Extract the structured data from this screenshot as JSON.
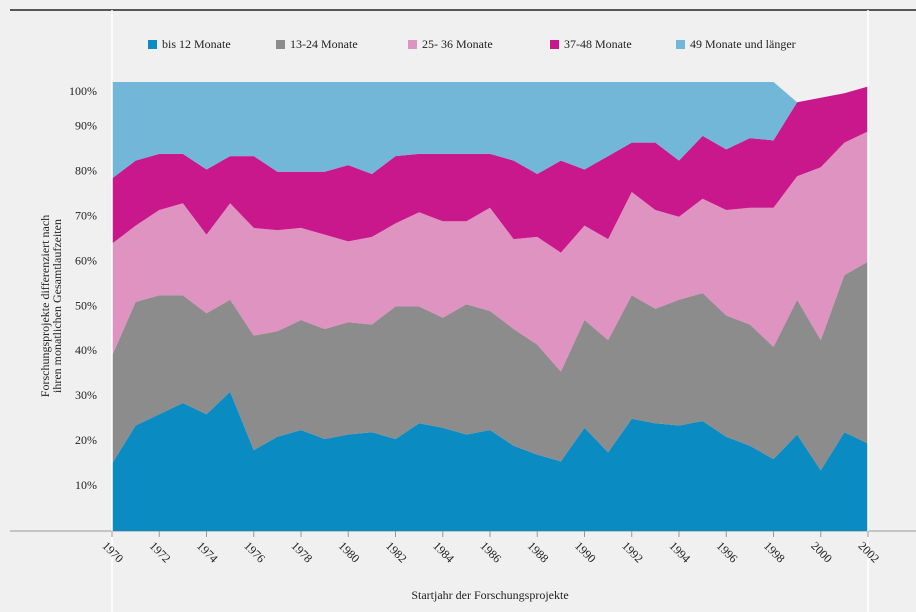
{
  "chart_data": {
    "type": "stacked_area",
    "ylabel": [
      "Forschungsprojekte differenziert nach",
      "ihren monatlichen Gesamtlaufzeiten"
    ],
    "xlabel": "Startjahr der Forschungsprojekte",
    "x": [
      1970,
      1971,
      1972,
      1973,
      1974,
      1975,
      1976,
      1977,
      1978,
      1979,
      1980,
      1981,
      1982,
      1983,
      1984,
      1985,
      1986,
      1987,
      1988,
      1989,
      1990,
      1991,
      1992,
      1993,
      1994,
      1995,
      1996,
      1997,
      1998,
      1999,
      2000,
      2001,
      2002
    ],
    "xlim": [
      1970,
      2002
    ],
    "xticks": [
      1970,
      1972,
      1974,
      1976,
      1978,
      1980,
      1982,
      1984,
      1986,
      1988,
      1990,
      1992,
      1994,
      1996,
      1998,
      2000,
      2002
    ],
    "ylim": [
      0,
      100
    ],
    "yticks": [
      {
        "value": 10,
        "label": "10%"
      },
      {
        "value": 20,
        "label": "20%"
      },
      {
        "value": 30,
        "label": "30%"
      },
      {
        "value": 40,
        "label": "40%"
      },
      {
        "value": 50,
        "label": "50%"
      },
      {
        "value": 60,
        "label": "60%"
      },
      {
        "value": 70,
        "label": "70%"
      },
      {
        "value": 80,
        "label": "80%"
      },
      {
        "value": 90,
        "label": "90%"
      },
      {
        "value": 100,
        "label": "100%"
      }
    ],
    "grid": false,
    "legend": "top",
    "series": [
      {
        "name": "bis 12 Monate",
        "color": "#0a8cc2",
        "values": [
          15,
          23.5,
          26,
          28.5,
          26,
          31,
          18,
          21,
          22.5,
          20.5,
          21.5,
          22,
          20.5,
          24,
          23,
          21.5,
          22.5,
          19,
          17,
          15.5,
          23,
          17.5,
          25,
          24,
          23.5,
          24.5,
          21,
          19,
          16,
          21.5,
          13.5,
          22,
          19.5
        ]
      },
      {
        "name": "13-24 Monate",
        "color": "#8c8c8c",
        "values": [
          24,
          27.5,
          26.5,
          24,
          22.5,
          20.5,
          25.5,
          23.5,
          24.5,
          24.5,
          25,
          24,
          29.5,
          26,
          24.5,
          29,
          26.5,
          26,
          24.5,
          20,
          24,
          25,
          27.5,
          25.5,
          28,
          28.5,
          27,
          27,
          25,
          30,
          29,
          35,
          40.5
        ]
      },
      {
        "name": "25- 36 Monate",
        "color": "#de93c0",
        "values": [
          25,
          17,
          19,
          20.5,
          17.5,
          21.5,
          24,
          22.5,
          20.5,
          21,
          18,
          19.5,
          18.5,
          21,
          21.5,
          18.5,
          23,
          20,
          24,
          26.5,
          21,
          22.5,
          23,
          22,
          18.5,
          21,
          23.5,
          26,
          31,
          27.5,
          38.5,
          29.5,
          29
        ]
      },
      {
        "name": "37-48 Monate",
        "color": "#c8188b",
        "values": [
          14.5,
          14.5,
          12.5,
          11,
          14.5,
          10.5,
          16,
          13,
          12.5,
          14,
          17,
          14,
          15,
          13,
          15,
          15,
          12,
          17.5,
          14,
          20.5,
          12.5,
          18.5,
          11,
          15,
          12.5,
          14,
          13.5,
          15.5,
          15,
          16.5,
          15.5,
          11,
          10
        ]
      },
      {
        "name": "49 Monate und länger",
        "color": "#72b6d8",
        "values": [
          21.5,
          17.5,
          16,
          16,
          19.5,
          16.5,
          16.5,
          20,
          20,
          20,
          18.5,
          20.5,
          16.5,
          16,
          16,
          16,
          16,
          17.5,
          20.5,
          17.5,
          19.5,
          16.5,
          13.5,
          13.5,
          17.5,
          12,
          15,
          12.5,
          13,
          0,
          0,
          0,
          0
        ]
      }
    ]
  }
}
